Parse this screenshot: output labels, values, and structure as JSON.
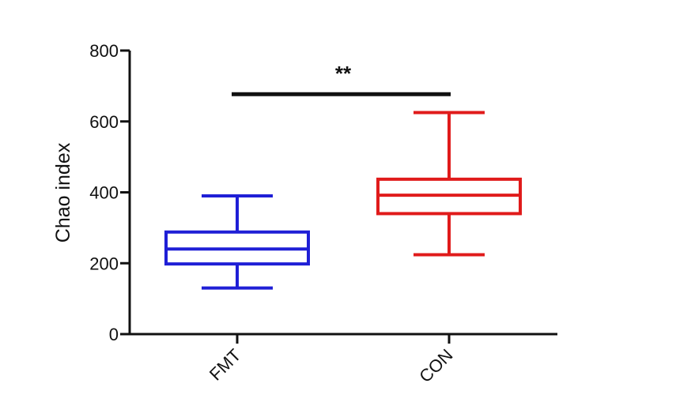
{
  "chart_data": {
    "type": "box",
    "ylabel": "Chao index",
    "ylim": [
      0,
      800
    ],
    "yticks": [
      0,
      200,
      400,
      600,
      800
    ],
    "grid": false,
    "categories": [
      "FMT",
      "CON"
    ],
    "series": [
      {
        "category": "FMT",
        "color": "#1f1fd6",
        "whisker_low": 130,
        "q1": 198,
        "median": 240,
        "q3": 288,
        "whisker_high": 390
      },
      {
        "category": "CON",
        "color": "#e01b1b",
        "whisker_low": 224,
        "q1": 340,
        "median": 392,
        "q3": 437,
        "whisker_high": 625
      }
    ],
    "significance": {
      "between": [
        "FMT",
        "CON"
      ],
      "label": "**",
      "y": 677
    }
  }
}
